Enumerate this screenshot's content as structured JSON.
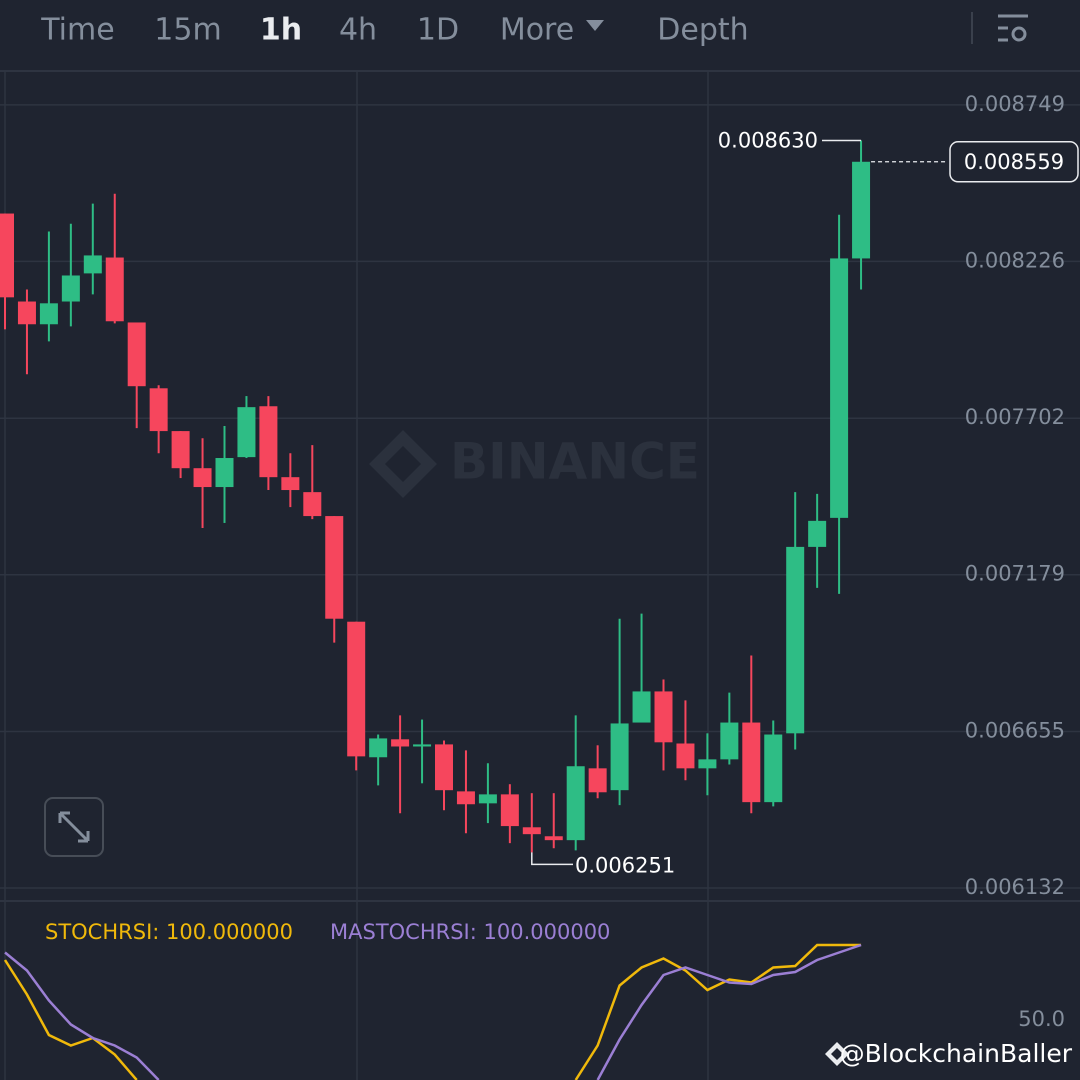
{
  "toolbar": {
    "items": [
      "Time",
      "15m",
      "1h",
      "4h",
      "1D",
      "More",
      "Depth"
    ]
  },
  "watermark": "BINANCE",
  "credit": "@BlockchainBaller",
  "chart_data": [
    {
      "type": "candlestick",
      "categories": [
        null,
        null,
        null,
        null,
        null,
        null,
        null,
        null,
        null,
        null,
        null,
        null,
        null,
        null,
        null,
        null,
        null,
        null,
        null,
        null,
        null,
        null,
        null,
        null,
        null,
        null,
        null,
        null,
        null,
        null,
        null,
        null,
        null,
        null,
        null,
        null,
        null,
        null,
        null,
        null
      ],
      "open": [
        0.008386,
        0.008092,
        0.008016,
        0.008092,
        0.008186,
        0.008239,
        0.008022,
        0.007802,
        0.007659,
        0.007535,
        0.007472,
        0.007572,
        0.007742,
        0.007505,
        0.007455,
        0.007375,
        0.007022,
        0.006569,
        0.006629,
        0.006605,
        0.006612,
        0.006455,
        0.006415,
        0.006445,
        0.006335,
        0.006305,
        0.006292,
        0.006532,
        0.006459,
        0.006685,
        0.006789,
        0.006615,
        0.006532,
        0.006562,
        0.006685,
        0.006419,
        0.006649,
        0.007272,
        0.007369,
        0.008236
      ],
      "high": [
        0.008386,
        0.008132,
        0.008326,
        0.008352,
        0.008419,
        0.008452,
        0.008022,
        0.007812,
        0.007659,
        0.007635,
        0.007676,
        0.007776,
        0.007776,
        0.007585,
        0.007612,
        0.007375,
        0.007022,
        0.006645,
        0.006709,
        0.006695,
        0.006625,
        0.006592,
        0.006549,
        0.006479,
        0.006449,
        0.006449,
        0.006709,
        0.006609,
        0.007032,
        0.007049,
        0.006829,
        0.006759,
        0.006649,
        0.006785,
        0.006909,
        0.006692,
        0.007455,
        0.007449,
        0.008382,
        0.00863
      ],
      "low": [
        0.007999,
        0.007849,
        0.007959,
        0.008009,
        0.008116,
        0.008019,
        0.007669,
        0.007585,
        0.007502,
        0.007335,
        0.007352,
        0.007569,
        0.007462,
        0.007405,
        0.007365,
        0.006952,
        0.006525,
        0.006475,
        0.006382,
        0.006482,
        0.006392,
        0.006315,
        0.006349,
        0.006282,
        0.006251,
        0.006265,
        0.006258,
        0.006432,
        0.006409,
        0.006685,
        0.006525,
        0.006492,
        0.006442,
        0.006545,
        0.006382,
        0.006405,
        0.006595,
        0.007135,
        0.007115,
        0.008132
      ],
      "close": [
        0.008106,
        0.008016,
        0.008086,
        0.008179,
        0.008246,
        0.008026,
        0.007809,
        0.007659,
        0.007535,
        0.007472,
        0.007569,
        0.007739,
        0.007505,
        0.007462,
        0.007375,
        0.007032,
        0.006572,
        0.006632,
        0.006605,
        0.006612,
        0.006459,
        0.006412,
        0.006445,
        0.006339,
        0.006312,
        0.006292,
        0.006539,
        0.006452,
        0.006682,
        0.006789,
        0.006619,
        0.006532,
        0.006562,
        0.006685,
        0.006419,
        0.006645,
        0.007272,
        0.007359,
        0.008236,
        0.008559
      ],
      "up_color": "#2ebd85",
      "down_color": "#f6465d",
      "ylim": [
        0.006092,
        0.008859
      ],
      "yticks": [
        0.006132,
        0.006655,
        0.007179,
        0.007702,
        0.008226,
        0.008749
      ],
      "grid": true,
      "annotations": {
        "high": {
          "value": 0.00863,
          "label": "0.008630"
        },
        "low": 0.006251,
        "last_price": 0.008559
      }
    },
    {
      "type": "line",
      "categories": [
        null,
        null,
        null,
        null,
        null,
        null,
        null,
        null,
        null,
        null,
        null,
        null,
        null,
        null,
        null,
        null,
        null,
        null,
        null,
        null,
        null,
        null,
        null,
        null,
        null,
        null,
        null,
        null,
        null,
        null,
        null,
        null,
        null,
        null,
        null,
        null,
        null,
        null,
        null,
        null
      ],
      "series": [
        {
          "name": "STOCHRSI: 100.000000",
          "color": "#f0b90b",
          "values": [
            90,
            67,
            40,
            33,
            38,
            27,
            10,
            null,
            null,
            null,
            null,
            null,
            null,
            null,
            null,
            null,
            null,
            null,
            null,
            null,
            null,
            null,
            null,
            null,
            null,
            null,
            10,
            33,
            73,
            85,
            91,
            83,
            70,
            77,
            75,
            85,
            86,
            100,
            100,
            100
          ]
        },
        {
          "name": "MASTOCHRSI: 100.000000",
          "color": "#9b7fd4",
          "values": [
            95,
            83,
            63,
            47,
            38,
            33,
            25,
            10,
            null,
            null,
            null,
            null,
            null,
            null,
            null,
            null,
            null,
            null,
            null,
            null,
            null,
            null,
            null,
            null,
            null,
            null,
            null,
            10,
            37,
            60,
            80,
            85,
            80,
            75,
            74,
            80,
            82,
            90,
            95,
            100
          ]
        }
      ],
      "ylim": [
        10,
        130
      ],
      "yticks": [
        {
          "value": 50,
          "label": "50.0"
        }
      ],
      "grid": false
    }
  ]
}
